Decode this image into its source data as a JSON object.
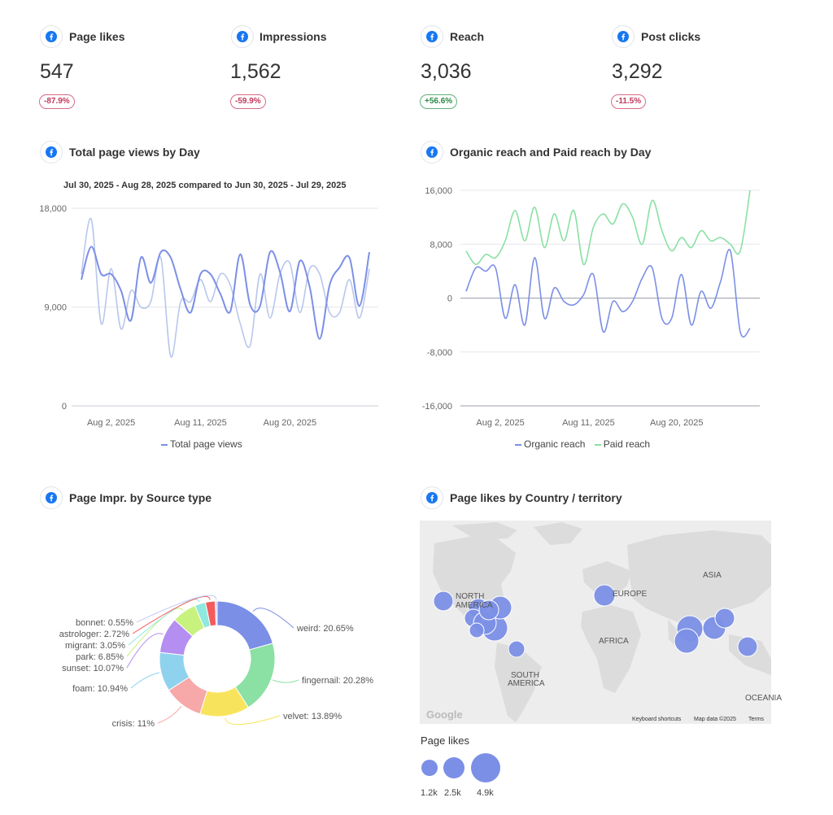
{
  "colors": {
    "accent": "#7b8fe6",
    "organic": "#7b8fe6",
    "paid": "#8be0a4",
    "page_views": "#7b8fe6",
    "page_views_prev": "#b8c7ec",
    "negative": "#c0395b",
    "positive": "#2c8a48",
    "facebook": "#1877f2"
  },
  "icons": {
    "source_icon": "facebook-icon"
  },
  "kpis": [
    {
      "label": "Page likes",
      "value": "547",
      "delta": "-87.9%",
      "trend": "negative"
    },
    {
      "label": "Impressions",
      "value": "1,562",
      "delta": "-59.9%",
      "trend": "negative"
    },
    {
      "label": "Reach",
      "value": "3,036",
      "delta": "+56.6%",
      "trend": "positive"
    },
    {
      "label": "Post clicks",
      "value": "3,292",
      "delta": "-11.5%",
      "trend": "negative"
    }
  ],
  "page_views_card": {
    "title": "Total page views by Day",
    "subtitle": "Jul 30, 2025 - Aug 28, 2025 compared to Jun 30, 2025 - Jul 29, 2025",
    "legend": "Total page views"
  },
  "reach_card": {
    "title": "Organic reach and Paid reach by Day",
    "legend_organic": "Organic reach",
    "legend_paid": "Paid reach"
  },
  "source_card": {
    "title": "Page Impr. by Source type"
  },
  "country_card": {
    "title": "Page likes by Country / territory",
    "map_labels": [
      "NORTH",
      "AMERICA",
      "EUROPE",
      "ASIA",
      "AFRICA",
      "SOUTH",
      "AMERICA",
      "OCEANIA"
    ],
    "map_footer": {
      "keyboard": "Keyboard shortcuts",
      "map_data": "Map data ©2025",
      "terms": "Terms",
      "brand": "Google"
    },
    "size_legend_title": "Page likes",
    "size_legend": [
      "1.2k",
      "2.5k",
      "4.9k"
    ]
  },
  "chart_data": [
    {
      "type": "line",
      "title": "Total page views by Day",
      "x_ticks": [
        "Aug 2, 2025",
        "Aug 11, 2025",
        "Aug 20, 2025"
      ],
      "x": [
        "Jul 30",
        "Jul 31",
        "Aug 1",
        "Aug 2",
        "Aug 3",
        "Aug 4",
        "Aug 5",
        "Aug 6",
        "Aug 7",
        "Aug 8",
        "Aug 9",
        "Aug 10",
        "Aug 11",
        "Aug 12",
        "Aug 13",
        "Aug 14",
        "Aug 15",
        "Aug 16",
        "Aug 17",
        "Aug 18",
        "Aug 19",
        "Aug 20",
        "Aug 21",
        "Aug 22",
        "Aug 23",
        "Aug 24",
        "Aug 25",
        "Aug 26",
        "Aug 27",
        "Aug 28"
      ],
      "ylim": [
        0,
        18000
      ],
      "y_ticks": [
        "0",
        "9,000",
        "18,000"
      ],
      "series": [
        {
          "name": "Total page views",
          "values": [
            11500,
            14500,
            12000,
            12000,
            10500,
            7800,
            13500,
            11200,
            14000,
            13500,
            10600,
            8500,
            12000,
            12000,
            10200,
            8600,
            13800,
            9200,
            9100,
            14000,
            12200,
            8600,
            13200,
            10800,
            6100,
            11000,
            12600,
            13500,
            9100,
            14000
          ]
        },
        {
          "values": [
            12000,
            17000,
            7500,
            12500,
            7000,
            10500,
            9000,
            9500,
            13500,
            4500,
            9500,
            9500,
            11500,
            9500,
            12000,
            11000,
            7500,
            5500,
            12000,
            8000,
            12000,
            13000,
            8500,
            12500,
            12000,
            8500,
            8500,
            11500,
            8000,
            12500
          ]
        }
      ]
    },
    {
      "type": "line",
      "title": "Organic reach and Paid reach by Day",
      "x_ticks": [
        "Aug 2, 2025",
        "Aug 11, 2025",
        "Aug 20, 2025"
      ],
      "ylim": [
        -16000,
        16000
      ],
      "y_ticks": [
        "-16,000",
        "-8,000",
        "0",
        "8,000",
        "16,000"
      ],
      "series": [
        {
          "name": "Organic reach",
          "values": [
            1000,
            4500,
            4000,
            4500,
            -3000,
            2000,
            -4000,
            6000,
            -3000,
            1500,
            -500,
            -1000,
            500,
            3500,
            -5000,
            -500,
            -2000,
            -500,
            3000,
            4500,
            -3000,
            -3000,
            3500,
            -4000,
            1000,
            -1500,
            2500,
            7000,
            -5000,
            -4500
          ]
        },
        {
          "name": "Paid reach",
          "values": [
            7000,
            5000,
            6500,
            6000,
            8500,
            13000,
            8500,
            13500,
            7500,
            12500,
            8500,
            13000,
            5000,
            10500,
            12500,
            11000,
            14000,
            12000,
            8000,
            14500,
            10000,
            7000,
            9000,
            7500,
            10000,
            8500,
            9000,
            8000,
            7000,
            16000
          ]
        }
      ]
    },
    {
      "type": "pie",
      "title": "Page Impr. by Source type",
      "categories": [
        "weird",
        "fingernail",
        "velvet",
        "crisis",
        "foam",
        "sunset",
        "park",
        "migrant",
        "astrologer",
        "bonnet"
      ],
      "values": [
        20.65,
        20.28,
        13.89,
        11,
        10.94,
        10.07,
        6.85,
        3.05,
        2.72,
        0.55
      ],
      "labels": [
        "weird: 20.65%",
        "fingernail: 20.28%",
        "velvet: 13.89%",
        "crisis: 11%",
        "foam: 10.94%",
        "sunset: 10.07%",
        "park: 6.85%",
        "migrant: 3.05%",
        "astrologer: 2.72%",
        "bonnet: 0.55%"
      ],
      "colors": [
        "#7b8fe6",
        "#8be0a4",
        "#f8e45c",
        "#f7a8a8",
        "#8fd2ee",
        "#b48ef0",
        "#c6f27d",
        "#8fe9dd",
        "#f45b5b",
        "#c2c9f4"
      ]
    }
  ]
}
